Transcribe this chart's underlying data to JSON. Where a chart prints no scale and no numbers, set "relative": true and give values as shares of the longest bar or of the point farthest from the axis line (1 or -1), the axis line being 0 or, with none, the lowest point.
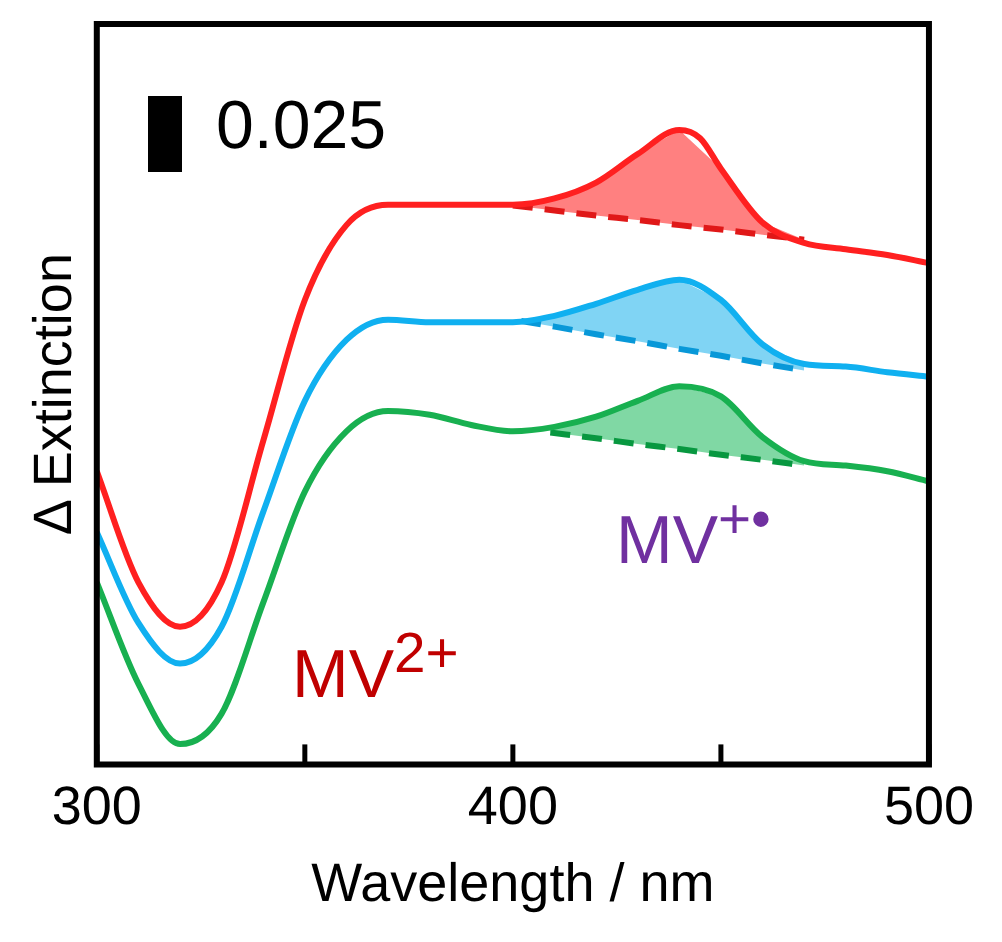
{
  "chart_data": {
    "type": "line",
    "xlabel": "Wavelength / nm",
    "ylabel": "Δ Extinction",
    "relative": true,
    "xlim": [
      300,
      500
    ],
    "xticks": [
      300,
      {
        "value": 350,
        "label": null
      },
      400,
      {
        "value": 450,
        "label": null
      },
      500
    ],
    "tick_labels": "x",
    "grid": false,
    "legend": false,
    "marker": "none",
    "line_style": "solid",
    "annotations": [
      "0.025",
      "MV$^{2+}$",
      "MV$^{+•}$"
    ],
    "series": [
      {
        "type": "line",
        "color": "#e01818",
        "line_style": "dashed",
        "x": [
          400,
          410,
          420,
          430,
          440,
          450,
          460,
          470
        ],
        "values": [
          0.881,
          0.873,
          0.865,
          0.858,
          0.85,
          0.843,
          0.835,
          0.827
        ]
      },
      {
        "type": "area",
        "color": "#ff8080",
        "x": [
          398,
          410,
          420,
          430,
          440,
          450,
          460,
          470
        ],
        "values": [
          0.882,
          0.892,
          0.917,
          0.962,
          1,
          0.939,
          0.854,
          0.827
        ]
      },
      {
        "type": "line",
        "color": "#0898d8",
        "line_style": "dashed",
        "x": [
          402,
          410,
          420,
          430,
          440,
          450,
          460,
          470
        ],
        "values": [
          0.699,
          0.69,
          0.678,
          0.667,
          0.655,
          0.644,
          0.632,
          0.621
        ]
      },
      {
        "type": "area",
        "color": "#80d4f4",
        "x": [
          400,
          410,
          420,
          430,
          440,
          450,
          460,
          470
        ],
        "values": [
          0.701,
          0.707,
          0.726,
          0.748,
          0.764,
          0.732,
          0.662,
          0.631
        ]
      },
      {
        "type": "line",
        "color": "#089840",
        "line_style": "dashed",
        "x": [
          409,
          420,
          430,
          440,
          450,
          460,
          470
        ],
        "values": [
          0.523,
          0.514,
          0.505,
          0.497,
          0.488,
          0.48,
          0.471
        ]
      },
      {
        "type": "area",
        "color": "#80d8a4",
        "x": [
          407,
          420,
          430,
          440,
          450,
          460,
          470
        ],
        "values": [
          0.53,
          0.548,
          0.573,
          0.596,
          0.58,
          0.516,
          0.478
        ]
      },
      {
        "color": "#ff2020",
        "x": [
          300,
          310,
          320,
          330,
          340,
          350,
          360,
          370,
          380,
          390,
          400,
          410,
          420,
          430,
          440,
          445,
          450,
          460,
          470,
          480,
          490,
          500
        ],
        "values": [
          0.462,
          0.287,
          0.217,
          0.287,
          0.51,
          0.732,
          0.85,
          0.882,
          0.882,
          0.882,
          0.882,
          0.892,
          0.917,
          0.962,
          1,
          0.987,
          0.939,
          0.854,
          0.822,
          0.812,
          0.803,
          0.79
        ]
      },
      {
        "color": "#10b0f0",
        "x": [
          300,
          310,
          320,
          330,
          340,
          350,
          360,
          370,
          380,
          390,
          400,
          410,
          420,
          430,
          440,
          450,
          460,
          470,
          480,
          490,
          500
        ],
        "values": [
          0.366,
          0.223,
          0.159,
          0.217,
          0.398,
          0.573,
          0.669,
          0.701,
          0.697,
          0.697,
          0.697,
          0.707,
          0.726,
          0.748,
          0.764,
          0.732,
          0.662,
          0.631,
          0.627,
          0.618,
          0.611
        ]
      },
      {
        "color": "#18b050",
        "x": [
          300,
          310,
          320,
          330,
          340,
          350,
          360,
          370,
          380,
          390,
          400,
          410,
          420,
          430,
          440,
          450,
          460,
          470,
          480,
          490,
          500
        ],
        "values": [
          0.287,
          0.127,
          0.032,
          0.08,
          0.255,
          0.43,
          0.525,
          0.557,
          0.551,
          0.535,
          0.525,
          0.532,
          0.548,
          0.573,
          0.596,
          0.58,
          0.516,
          0.478,
          0.471,
          0.462,
          0.446
        ]
      }
    ]
  }
}
